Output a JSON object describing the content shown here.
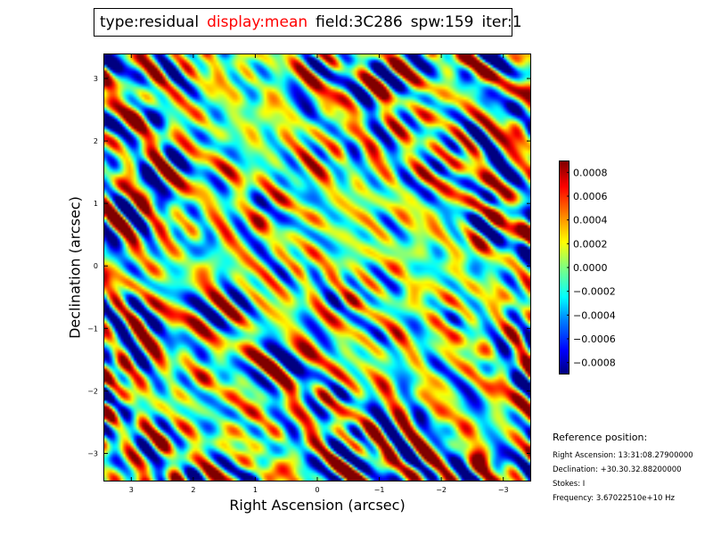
{
  "title": {
    "type": "type:residual",
    "display": "display:mean",
    "field": "field:3C286",
    "spw": "spw:159",
    "iter": "iter:1"
  },
  "colors": {
    "display_highlight": "#ff0000",
    "frame": "#000000"
  },
  "chart_data": {
    "type": "heatmap",
    "title": "type:residual display:mean field:3C286 spw:159 iter:1",
    "xlabel": "Right Ascension (arcsec)",
    "ylabel": "Declination (arcsec)",
    "xlim": [
      3.45,
      -3.45
    ],
    "ylim": [
      -3.45,
      3.4
    ],
    "xticks": [
      3,
      2,
      1,
      0,
      -1,
      -2,
      -3
    ],
    "xtick_labels": [
      "3",
      "2",
      "1",
      "0",
      "−1",
      "−2",
      "−3"
    ],
    "yticks": [
      3,
      2,
      1,
      0,
      -1,
      -2,
      -3
    ],
    "ytick_labels": [
      "3",
      "2",
      "1",
      "0",
      "−1",
      "−2",
      "−3"
    ],
    "colormap": "jet",
    "value_range": [
      -0.0009,
      0.0009
    ],
    "colorbar_ticks": [
      0.0008,
      0.0006,
      0.0004,
      0.0002,
      0.0,
      -0.0002,
      -0.0004,
      -0.0006,
      -0.0008
    ],
    "colorbar_tick_labels": [
      "0.0008",
      "0.0006",
      "0.0004",
      "0.0002",
      "0.0000",
      "−0.0002",
      "−0.0004",
      "−0.0006",
      "−0.0008"
    ],
    "grid": false,
    "pattern": "diagonal residual stripes running from upper-left to lower-right, stronger amplitude near the corners"
  },
  "reference": {
    "title": "Reference position:",
    "ra": "Right Ascension: 13:31:08.27900000",
    "dec": "Declination: +30.30.32.88200000",
    "stokes": "Stokes: I",
    "frequency": "Frequency: 3.67022510e+10 Hz"
  }
}
